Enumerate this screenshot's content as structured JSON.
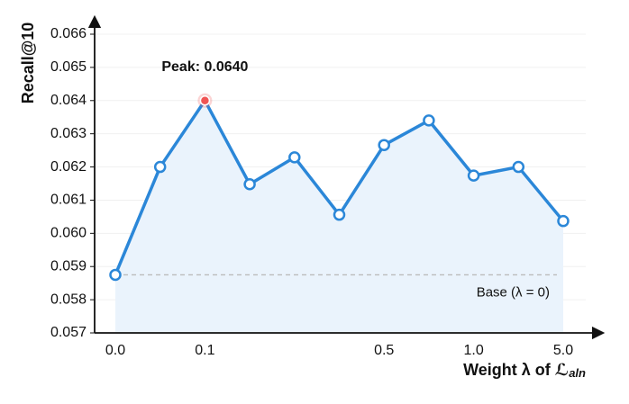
{
  "chart_data": {
    "type": "line",
    "y_label": "Recall@10",
    "x_label": "Weight λ of ℒ",
    "x_label_sub": "aln",
    "categories": [
      "0.0",
      null,
      "0.1",
      null,
      null,
      null,
      "0.5",
      null,
      "1.0",
      null,
      "5.0"
    ],
    "series": [
      {
        "name": "Recall@10",
        "color": "#2b87d8",
        "values": [
          0.05875,
          0.062,
          0.064,
          0.06148,
          0.06229,
          0.06056,
          0.06266,
          0.0634,
          0.06174,
          0.062,
          0.06037
        ]
      }
    ],
    "ylim": [
      0.057,
      0.066
    ],
    "yticks": [
      {
        "value": 0.057,
        "label": "0.057"
      },
      {
        "value": 0.058,
        "label": "0.058"
      },
      {
        "value": 0.059,
        "label": "0.059"
      },
      {
        "value": 0.06,
        "label": "0.060"
      },
      {
        "value": 0.061,
        "label": "0.061"
      },
      {
        "value": 0.062,
        "label": "0.062"
      },
      {
        "value": 0.063,
        "label": "0.063"
      },
      {
        "value": 0.064,
        "label": "0.064"
      },
      {
        "value": 0.065,
        "label": "0.065"
      },
      {
        "value": 0.066,
        "label": "0.066"
      }
    ],
    "grid": true,
    "baseline": {
      "value": 0.05875,
      "label": "Base (λ = 0)",
      "color": "#bbbbbb"
    },
    "annotation": {
      "text": "Peak: 0.0640",
      "color": "#f05454"
    },
    "area_fill": "#eaf3fc"
  }
}
